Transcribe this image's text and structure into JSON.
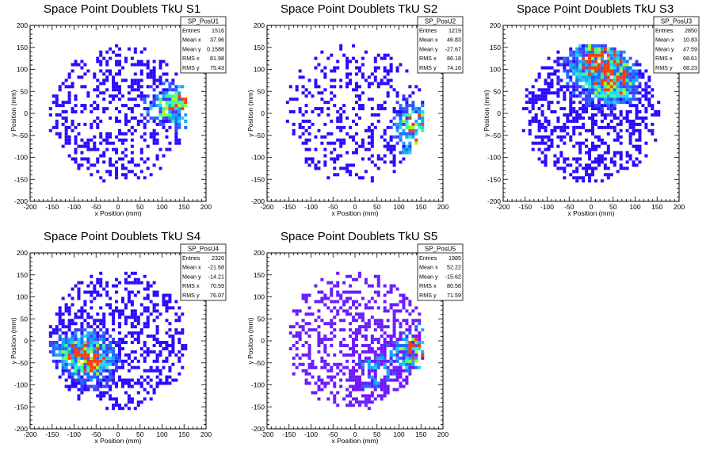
{
  "page": {
    "background": "#ffffff"
  },
  "palette": {
    "frame": "#000000",
    "bins": [
      "#2a0bff",
      "#3f3bff",
      "#1f6bff",
      "#14a7ff",
      "#1fd3ff",
      "#35ff9a",
      "#9cff2a",
      "#ff3a10"
    ],
    "violet_bins": [
      "#6a1cff",
      "#7a10ff"
    ]
  },
  "chart_data": [
    {
      "type": "heatmap",
      "title": "Space Point Doublets TkU S1",
      "xlabel": "x Position (mm)",
      "ylabel": "y Position (mm)",
      "xlim": [
        -200,
        200
      ],
      "ylim": [
        -200,
        200
      ],
      "xticks": [
        "-200",
        "-150",
        "-100",
        "-50",
        "0",
        "50",
        "100",
        "150",
        "200"
      ],
      "yticks": [
        "-200",
        "-150",
        "-100",
        "-50",
        "0",
        "50",
        "100",
        "150",
        "200"
      ],
      "grid": false,
      "stats_placement": "top-right",
      "stats": {
        "name": "SP_PosU1",
        "rows": [
          {
            "label": "Entries",
            "value": "1516"
          },
          {
            "label": "Mean x",
            "value": "37.96"
          },
          {
            "label": "Mean y",
            "value": "0.1588"
          },
          {
            "label": "RMS x",
            "value": "81.98"
          },
          {
            "label": "RMS y",
            "value": "75.43"
          }
        ]
      },
      "distribution": {
        "radius": 160,
        "fill_fraction": 0.5,
        "hotspots": [
          {
            "x": 145,
            "y": 20,
            "r": 70,
            "w": 1.3
          },
          {
            "x": 80,
            "y": 10,
            "r": 45,
            "w": 0.5
          }
        ],
        "base_level": 0.05,
        "violet": false
      }
    },
    {
      "type": "heatmap",
      "title": "Space Point Doublets TkU S2",
      "xlabel": "x Position (mm)",
      "ylabel": "y Position (mm)",
      "xlim": [
        -200,
        200
      ],
      "ylim": [
        -200,
        200
      ],
      "xticks": [
        "-200",
        "-150",
        "-100",
        "-50",
        "0",
        "50",
        "100",
        "150",
        "200"
      ],
      "yticks": [
        "-200",
        "-150",
        "-100",
        "-50",
        "0",
        "50",
        "100",
        "150",
        "200"
      ],
      "grid": false,
      "stats_placement": "top-right",
      "stats": {
        "name": "SP_PosU2",
        "rows": [
          {
            "label": "Entries",
            "value": "1219"
          },
          {
            "label": "Mean x",
            "value": "46.83"
          },
          {
            "label": "Mean y",
            "value": "-27.67"
          },
          {
            "label": "RMS x",
            "value": "86.18"
          },
          {
            "label": "RMS y",
            "value": "74.16"
          }
        ]
      },
      "distribution": {
        "radius": 160,
        "fill_fraction": 0.42,
        "hotspots": [
          {
            "x": 145,
            "y": -25,
            "r": 70,
            "w": 1.3
          },
          {
            "x": 130,
            "y": -90,
            "r": 40,
            "w": 0.6
          }
        ],
        "base_level": 0.04,
        "violet": false
      }
    },
    {
      "type": "heatmap",
      "title": "Space Point Doublets TkU S3",
      "xlabel": "x Position (mm)",
      "ylabel": "y Position (mm)",
      "xlim": [
        -200,
        200
      ],
      "ylim": [
        -200,
        200
      ],
      "xticks": [
        "-200",
        "-150",
        "-100",
        "-50",
        "0",
        "50",
        "100",
        "150",
        "200"
      ],
      "yticks": [
        "-200",
        "-150",
        "-100",
        "-50",
        "0",
        "50",
        "100",
        "150",
        "200"
      ],
      "grid": false,
      "stats_placement": "top-right",
      "stats": {
        "name": "SP_PosU3",
        "rows": [
          {
            "label": "Entries",
            "value": "2850"
          },
          {
            "label": "Mean x",
            "value": "10.83"
          },
          {
            "label": "Mean y",
            "value": "47.59"
          },
          {
            "label": "RMS x",
            "value": "68.61"
          },
          {
            "label": "RMS y",
            "value": "68.23"
          }
        ]
      },
      "distribution": {
        "radius": 160,
        "fill_fraction": 0.65,
        "hotspots": [
          {
            "x": 20,
            "y": 110,
            "r": 90,
            "w": 1.5
          },
          {
            "x": 60,
            "y": 60,
            "r": 60,
            "w": 0.7
          }
        ],
        "base_level": 0.05,
        "violet": false
      }
    },
    {
      "type": "heatmap",
      "title": "Space Point Doublets TkU S4",
      "xlabel": "x Position (mm)",
      "ylabel": "y Position (mm)",
      "xlim": [
        -200,
        200
      ],
      "ylim": [
        -200,
        200
      ],
      "xticks": [
        "-200",
        "-150",
        "-100",
        "-50",
        "0",
        "50",
        "100",
        "150",
        "200"
      ],
      "yticks": [
        "-200",
        "-150",
        "-100",
        "-50",
        "0",
        "50",
        "100",
        "150",
        "200"
      ],
      "grid": false,
      "stats_placement": "top-right",
      "stats": {
        "name": "SP_PosU4",
        "rows": [
          {
            "label": "Entries",
            "value": "2326"
          },
          {
            "label": "Mean x",
            "value": "-21.68"
          },
          {
            "label": "Mean y",
            "value": "-14.21"
          },
          {
            "label": "RMS x",
            "value": "70.59"
          },
          {
            "label": "RMS y",
            "value": "76.07"
          }
        ]
      },
      "distribution": {
        "radius": 160,
        "fill_fraction": 0.62,
        "hotspots": [
          {
            "x": -60,
            "y": -40,
            "r": 70,
            "w": 1.4
          },
          {
            "x": -120,
            "y": -20,
            "r": 50,
            "w": 0.6
          }
        ],
        "base_level": 0.06,
        "violet": false
      }
    },
    {
      "type": "heatmap",
      "title": "Space Point Doublets TkU S5",
      "xlabel": "x Position (mm)",
      "ylabel": "y Position (mm)",
      "xlim": [
        -200,
        200
      ],
      "ylim": [
        -200,
        200
      ],
      "xticks": [
        "-200",
        "-150",
        "-100",
        "-50",
        "0",
        "50",
        "100",
        "150",
        "200"
      ],
      "yticks": [
        "-200",
        "-150",
        "-100",
        "-50",
        "0",
        "50",
        "100",
        "150",
        "200"
      ],
      "grid": false,
      "stats_placement": "top-right",
      "stats": {
        "name": "SP_PosU5",
        "rows": [
          {
            "label": "Entries",
            "value": "1985"
          },
          {
            "label": "Mean x",
            "value": "52.22"
          },
          {
            "label": "Mean y",
            "value": "-15.62"
          },
          {
            "label": "RMS x",
            "value": "80.58"
          },
          {
            "label": "RMS y",
            "value": "71.59"
          }
        ]
      },
      "distribution": {
        "radius": 160,
        "fill_fraction": 0.55,
        "hotspots": [
          {
            "x": 140,
            "y": -20,
            "r": 65,
            "w": 1.3
          },
          {
            "x": 40,
            "y": -70,
            "r": 70,
            "w": 0.7
          }
        ],
        "base_level": 0.06,
        "violet": true
      }
    }
  ]
}
